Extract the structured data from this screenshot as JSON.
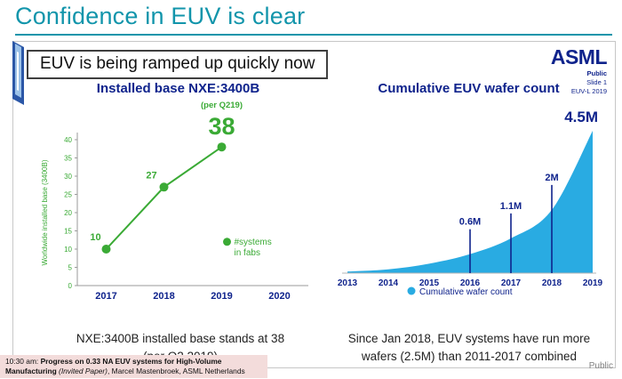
{
  "page": {
    "title": "Confidence in EUV is clear",
    "footer_public": "Public"
  },
  "slide": {
    "title": "EUV is being ramped up quickly now",
    "logo": {
      "brand": "ASML",
      "classification": "Public",
      "slide_number": "Slide 1",
      "event": "EUV-L 2019"
    }
  },
  "colors": {
    "teal": "#1295ab",
    "green": "#3aaa35",
    "blue": "#29abe2",
    "navy": "#0f238c",
    "axis_gray": "#9a9a9a",
    "banner_pink": "#f3dcdb"
  },
  "chart_data": [
    {
      "type": "line",
      "title": "Installed base NXE:3400B",
      "annotation": "(per Q219)",
      "categories": [
        "2017",
        "2018",
        "2019",
        "2020"
      ],
      "values": [
        10,
        27,
        38
      ],
      "point_labels": [
        "10",
        "27",
        "38"
      ],
      "ylabel": "Worldwide installed base (3400B)",
      "ylim": [
        0,
        40
      ],
      "ytick_step": 5,
      "legend_lines": [
        "#systems",
        "in fabs"
      ],
      "caption_lines": [
        "NXE:3400B installed base stands at 38",
        "(per Q2 2019)"
      ],
      "color": "#3aaa35"
    },
    {
      "type": "area",
      "title": "Cumulative EUV wafer count",
      "x": [
        2013,
        2014,
        2015,
        2016,
        2017,
        2018,
        2019
      ],
      "values": [
        0.05,
        0.12,
        0.3,
        0.6,
        1.1,
        2.0,
        4.5
      ],
      "markers": [
        {
          "x": 2016,
          "label": "0.6M"
        },
        {
          "x": 2017,
          "label": "1.1M"
        },
        {
          "x": 2018,
          "label": "2M"
        }
      ],
      "peak_label": "4.5M",
      "ylim": [
        0,
        4.5
      ],
      "legend": "Cumulative wafer count",
      "caption_lines": [
        "Since Jan 2018, EUV systems have run more",
        "wafers (2.5M) than 2011-2017 combined"
      ],
      "color": "#29abe2"
    }
  ],
  "schedule": {
    "time": "10:30 am:",
    "title": "Progress on 0.33 NA EUV systems for High-Volume Manufacturing",
    "paper_type": "(Invited Paper)",
    "authors": ", Marcel Mastenbroek, ASML Netherlands"
  }
}
